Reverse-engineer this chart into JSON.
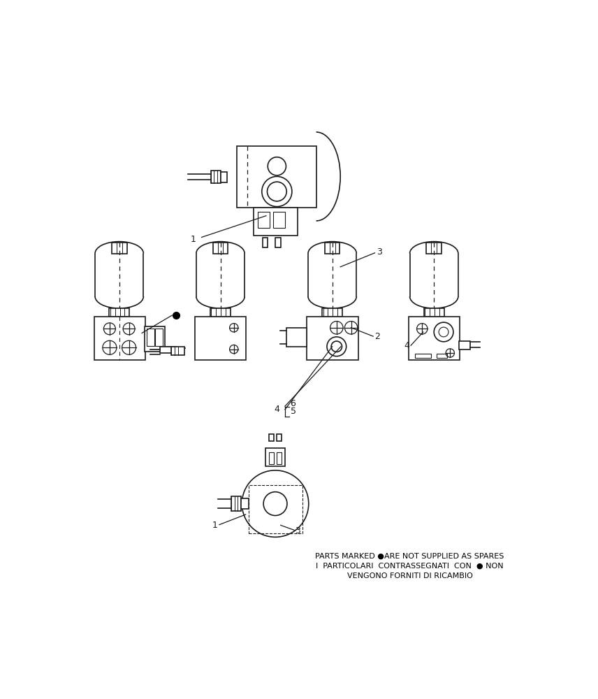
{
  "bg_color": "#ffffff",
  "line_color": "#1a1a1a",
  "line_width": 1.2,
  "text_color": "#000000",
  "disclaimer_line1": "PARTS MARKED ●ARE NOT SUPPLIED AS SPARES",
  "disclaimer_line2": "I  PARTICOLARI  CONTRASSEGNATI  CON  ● NON",
  "disclaimer_line3": "VENGONO FORNITI DI RICAMBIO",
  "fig_width": 8.56,
  "fig_height": 10.0,
  "dpi": 100
}
